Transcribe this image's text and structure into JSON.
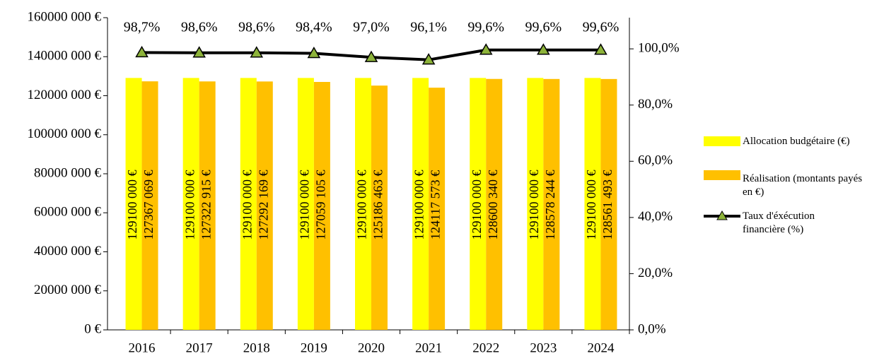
{
  "chart_data": {
    "type": "bar",
    "categories": [
      "2016",
      "2017",
      "2018",
      "2019",
      "2020",
      "2021",
      "2022",
      "2023",
      "2024"
    ],
    "series": [
      {
        "name": "Allocation budgétaire (€)",
        "color": "#ffff00",
        "values": [
          129100000,
          129100000,
          129100000,
          129100000,
          129100000,
          129100000,
          129100000,
          129100000,
          129100000
        ],
        "value_labels": [
          "129100 000 €",
          "129100 000 €",
          "129100 000 €",
          "129100 000 €",
          "129100 000 €",
          "129100 000 €",
          "129100 000 €",
          "129100 000 €",
          "129100 000 €"
        ]
      },
      {
        "name": "Réalisation (montants payés en €)",
        "color": "#ffc000",
        "values": [
          127367069,
          127322915,
          127292169,
          127059105,
          125186463,
          124117573,
          128600340,
          128578244,
          128561493
        ],
        "value_labels": [
          "127367 069 €",
          "127322 915 €",
          "127292 169 €",
          "127059 105 €",
          "125186 463 €",
          "124117 573 €",
          "128600 340 €",
          "128578 244 €",
          "128561 493 €"
        ]
      },
      {
        "name": "Taux d'éxécution financière (%)",
        "type": "line",
        "axis": "y2",
        "color": "#000000",
        "marker_color": "#8db33a",
        "values": [
          98.7,
          98.6,
          98.6,
          98.4,
          97.0,
          96.1,
          99.6,
          99.6,
          99.6
        ],
        "value_labels": [
          "98,7%",
          "98,6%",
          "98,6%",
          "98,4%",
          "97,0%",
          "96,1%",
          "99,6%",
          "99,6%",
          "99,6%"
        ]
      }
    ],
    "ylim": [
      0,
      160000000
    ],
    "yticks": [
      {
        "value": 0,
        "label": "0 €"
      },
      {
        "value": 20000000,
        "label": "20000 000 €"
      },
      {
        "value": 40000000,
        "label": "40000 000 €"
      },
      {
        "value": 60000000,
        "label": "60000 000 €"
      },
      {
        "value": 80000000,
        "label": "80000 000 €"
      },
      {
        "value": 100000000,
        "label": "100000 000 €"
      },
      {
        "value": 120000000,
        "label": "120000 000 €"
      },
      {
        "value": 140000000,
        "label": "140000 000 €"
      },
      {
        "value": 160000000,
        "label": "160000 000 €"
      }
    ],
    "y2lim": [
      0,
      111.1
    ],
    "y2ticks": [
      {
        "value": 0,
        "label": "0,0%"
      },
      {
        "value": 20,
        "label": "20,0%"
      },
      {
        "value": 40,
        "label": "40,0%"
      },
      {
        "value": 60,
        "label": "60,0%"
      },
      {
        "value": 80,
        "label": "80,0%"
      },
      {
        "value": 100,
        "label": "100,0%"
      }
    ],
    "legend": "right"
  }
}
